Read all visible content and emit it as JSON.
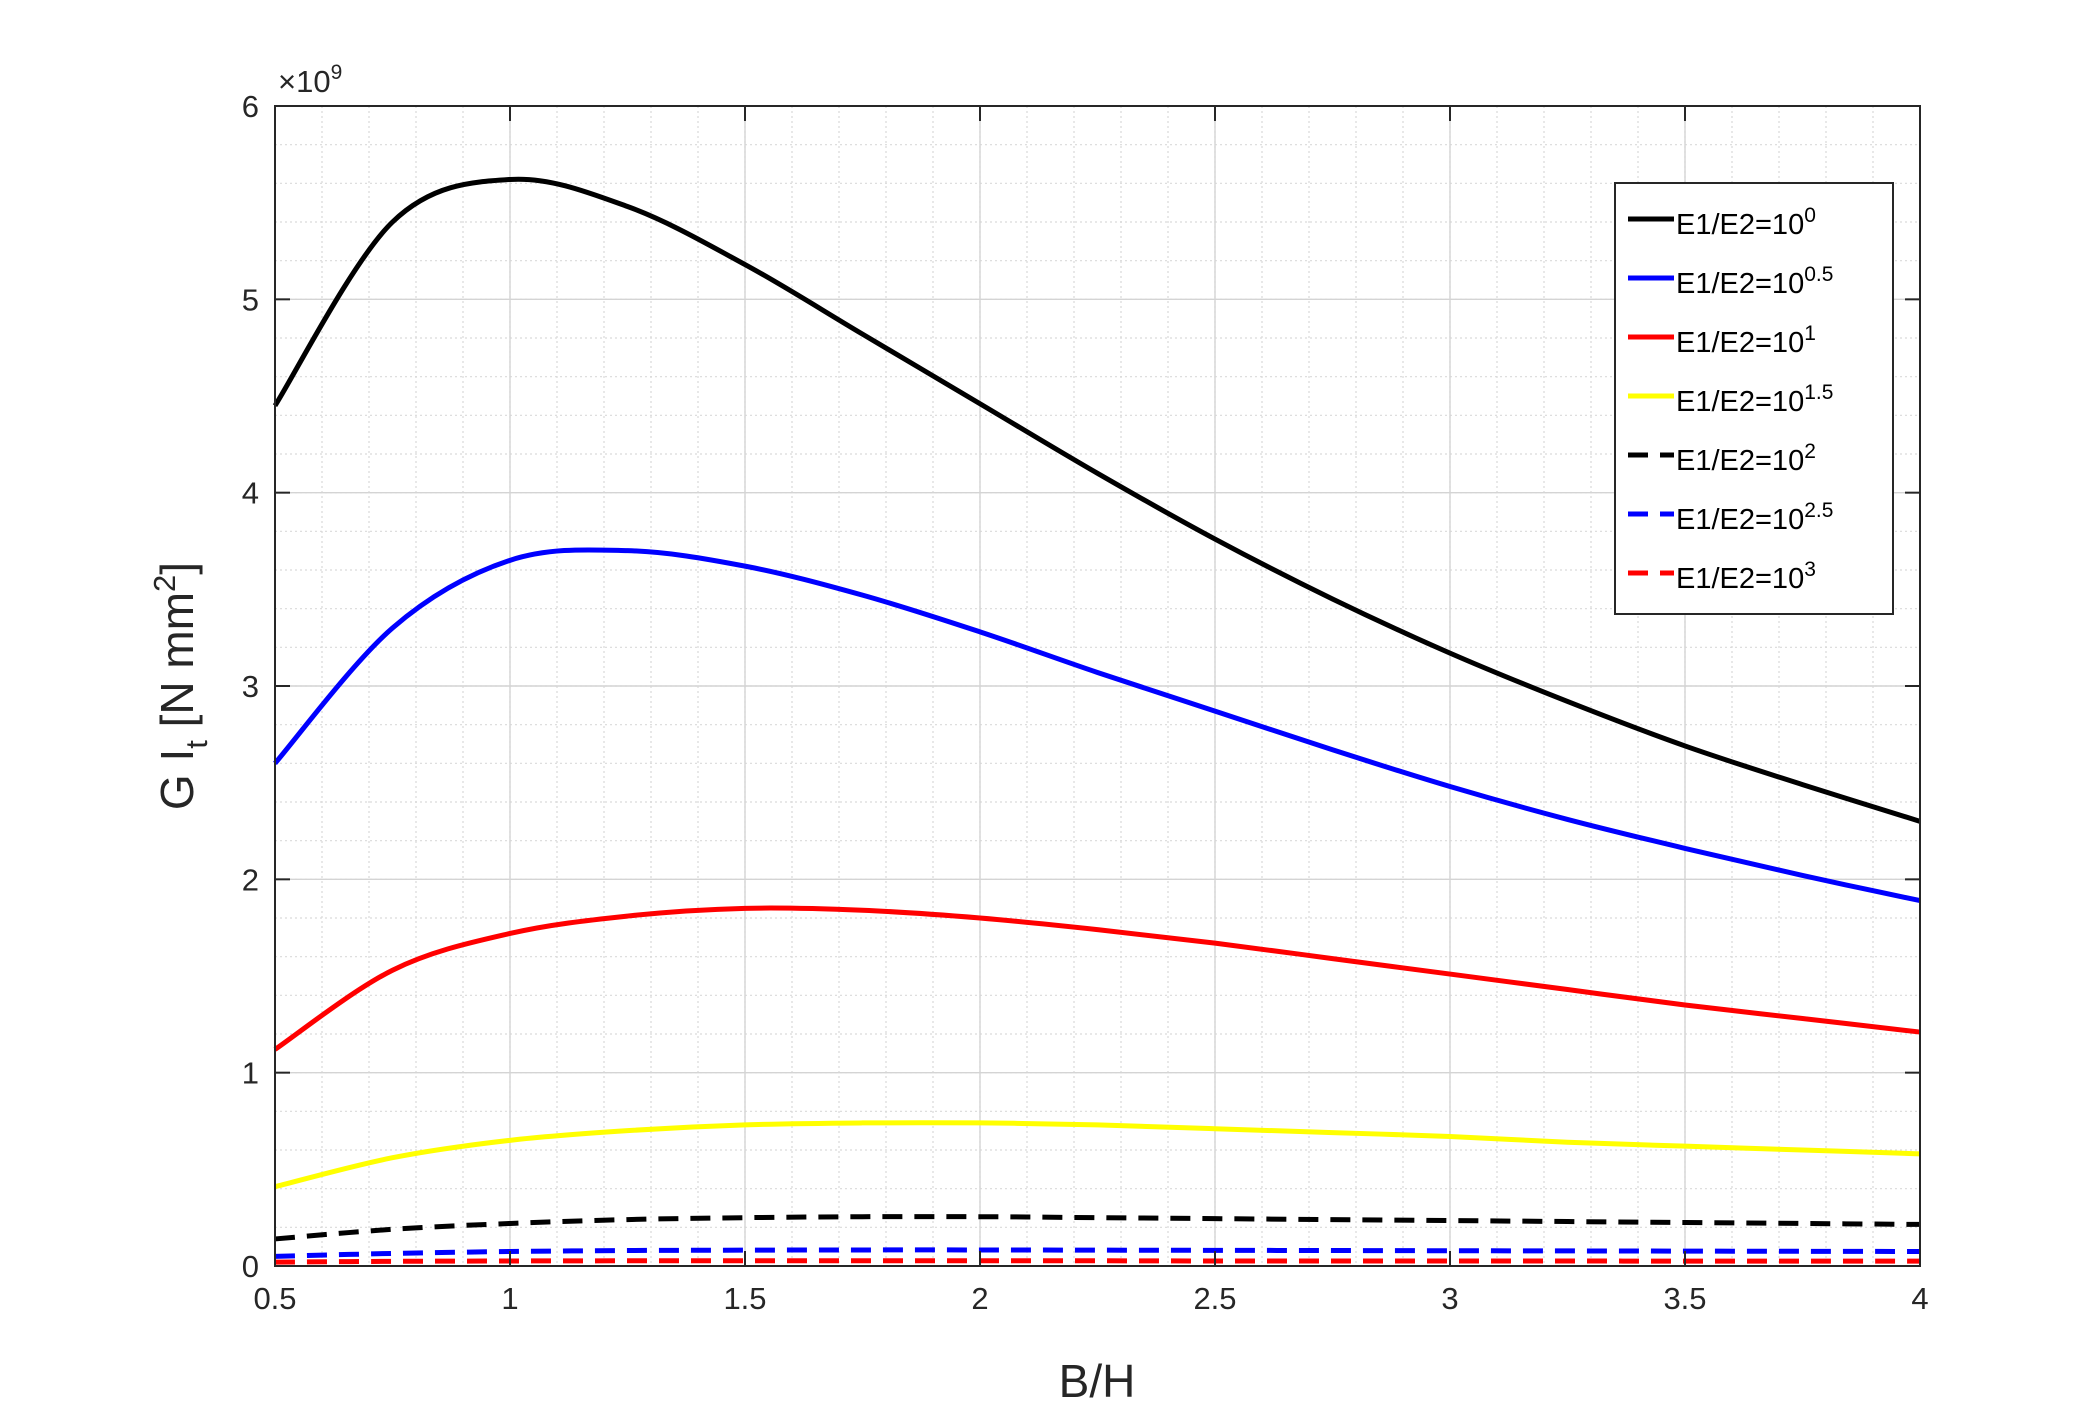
{
  "chart_data": {
    "type": "line",
    "xlabel": "B/H",
    "ylabel": {
      "main": "G I",
      "sub": "t",
      "unit": " [N mm",
      "unit_sup": "2",
      "unit_end": "]"
    },
    "y_exponent": {
      "base": "×10",
      "power": "9"
    },
    "xlim": [
      0.5,
      4
    ],
    "ylim": [
      0,
      6
    ],
    "xticks": [
      "0.5",
      "1",
      "1.5",
      "2",
      "2.5",
      "3",
      "3.5",
      "4"
    ],
    "yticks": [
      "0",
      "1",
      "2",
      "3",
      "4",
      "5",
      "6"
    ],
    "grid": true,
    "minor_grid": true,
    "legend_position": "top-right",
    "x": [
      0.5,
      0.75,
      1.0,
      1.25,
      1.5,
      1.75,
      2.0,
      2.25,
      2.5,
      2.75,
      3.0,
      3.25,
      3.5,
      3.75,
      4.0
    ],
    "series": [
      {
        "name": {
          "base": "E1/E2=10",
          "sup": "0"
        },
        "color": "#000000",
        "dash": "solid",
        "values": [
          4.45,
          5.4,
          5.62,
          5.48,
          5.18,
          4.82,
          4.46,
          4.1,
          3.76,
          3.45,
          3.17,
          2.92,
          2.69,
          2.49,
          2.3
        ]
      },
      {
        "name": {
          "base": "E1/E2=10",
          "sup": "0.5"
        },
        "color": "#0000ff",
        "dash": "solid",
        "values": [
          2.6,
          3.3,
          3.65,
          3.7,
          3.62,
          3.47,
          3.28,
          3.07,
          2.87,
          2.67,
          2.48,
          2.31,
          2.16,
          2.02,
          1.89
        ]
      },
      {
        "name": {
          "base": "E1/E2=10",
          "sup": "1"
        },
        "color": "#ff0000",
        "dash": "solid",
        "values": [
          1.12,
          1.53,
          1.72,
          1.81,
          1.85,
          1.84,
          1.8,
          1.74,
          1.67,
          1.59,
          1.51,
          1.43,
          1.35,
          1.28,
          1.21
        ]
      },
      {
        "name": {
          "base": "E1/E2=10",
          "sup": "1.5"
        },
        "color": "#ffff00",
        "dash": "solid",
        "values": [
          0.41,
          0.56,
          0.65,
          0.7,
          0.73,
          0.74,
          0.74,
          0.73,
          0.71,
          0.69,
          0.67,
          0.64,
          0.62,
          0.6,
          0.58
        ]
      },
      {
        "name": {
          "base": "E1/E2=10",
          "sup": "2"
        },
        "color": "#000000",
        "dash": "dashed",
        "values": [
          0.14,
          0.19,
          0.22,
          0.24,
          0.25,
          0.255,
          0.255,
          0.25,
          0.245,
          0.24,
          0.235,
          0.23,
          0.225,
          0.22,
          0.215
        ]
      },
      {
        "name": {
          "base": "E1/E2=10",
          "sup": "2.5"
        },
        "color": "#0000ff",
        "dash": "dashed",
        "values": [
          0.05,
          0.065,
          0.075,
          0.08,
          0.082,
          0.083,
          0.083,
          0.082,
          0.081,
          0.08,
          0.079,
          0.078,
          0.077,
          0.076,
          0.075
        ]
      },
      {
        "name": {
          "base": "E1/E2=10",
          "sup": "3"
        },
        "color": "#ff0000",
        "dash": "dashed",
        "values": [
          0.02,
          0.024,
          0.026,
          0.027,
          0.027,
          0.027,
          0.027,
          0.027,
          0.026,
          0.026,
          0.026,
          0.026,
          0.025,
          0.025,
          0.025
        ]
      }
    ]
  }
}
